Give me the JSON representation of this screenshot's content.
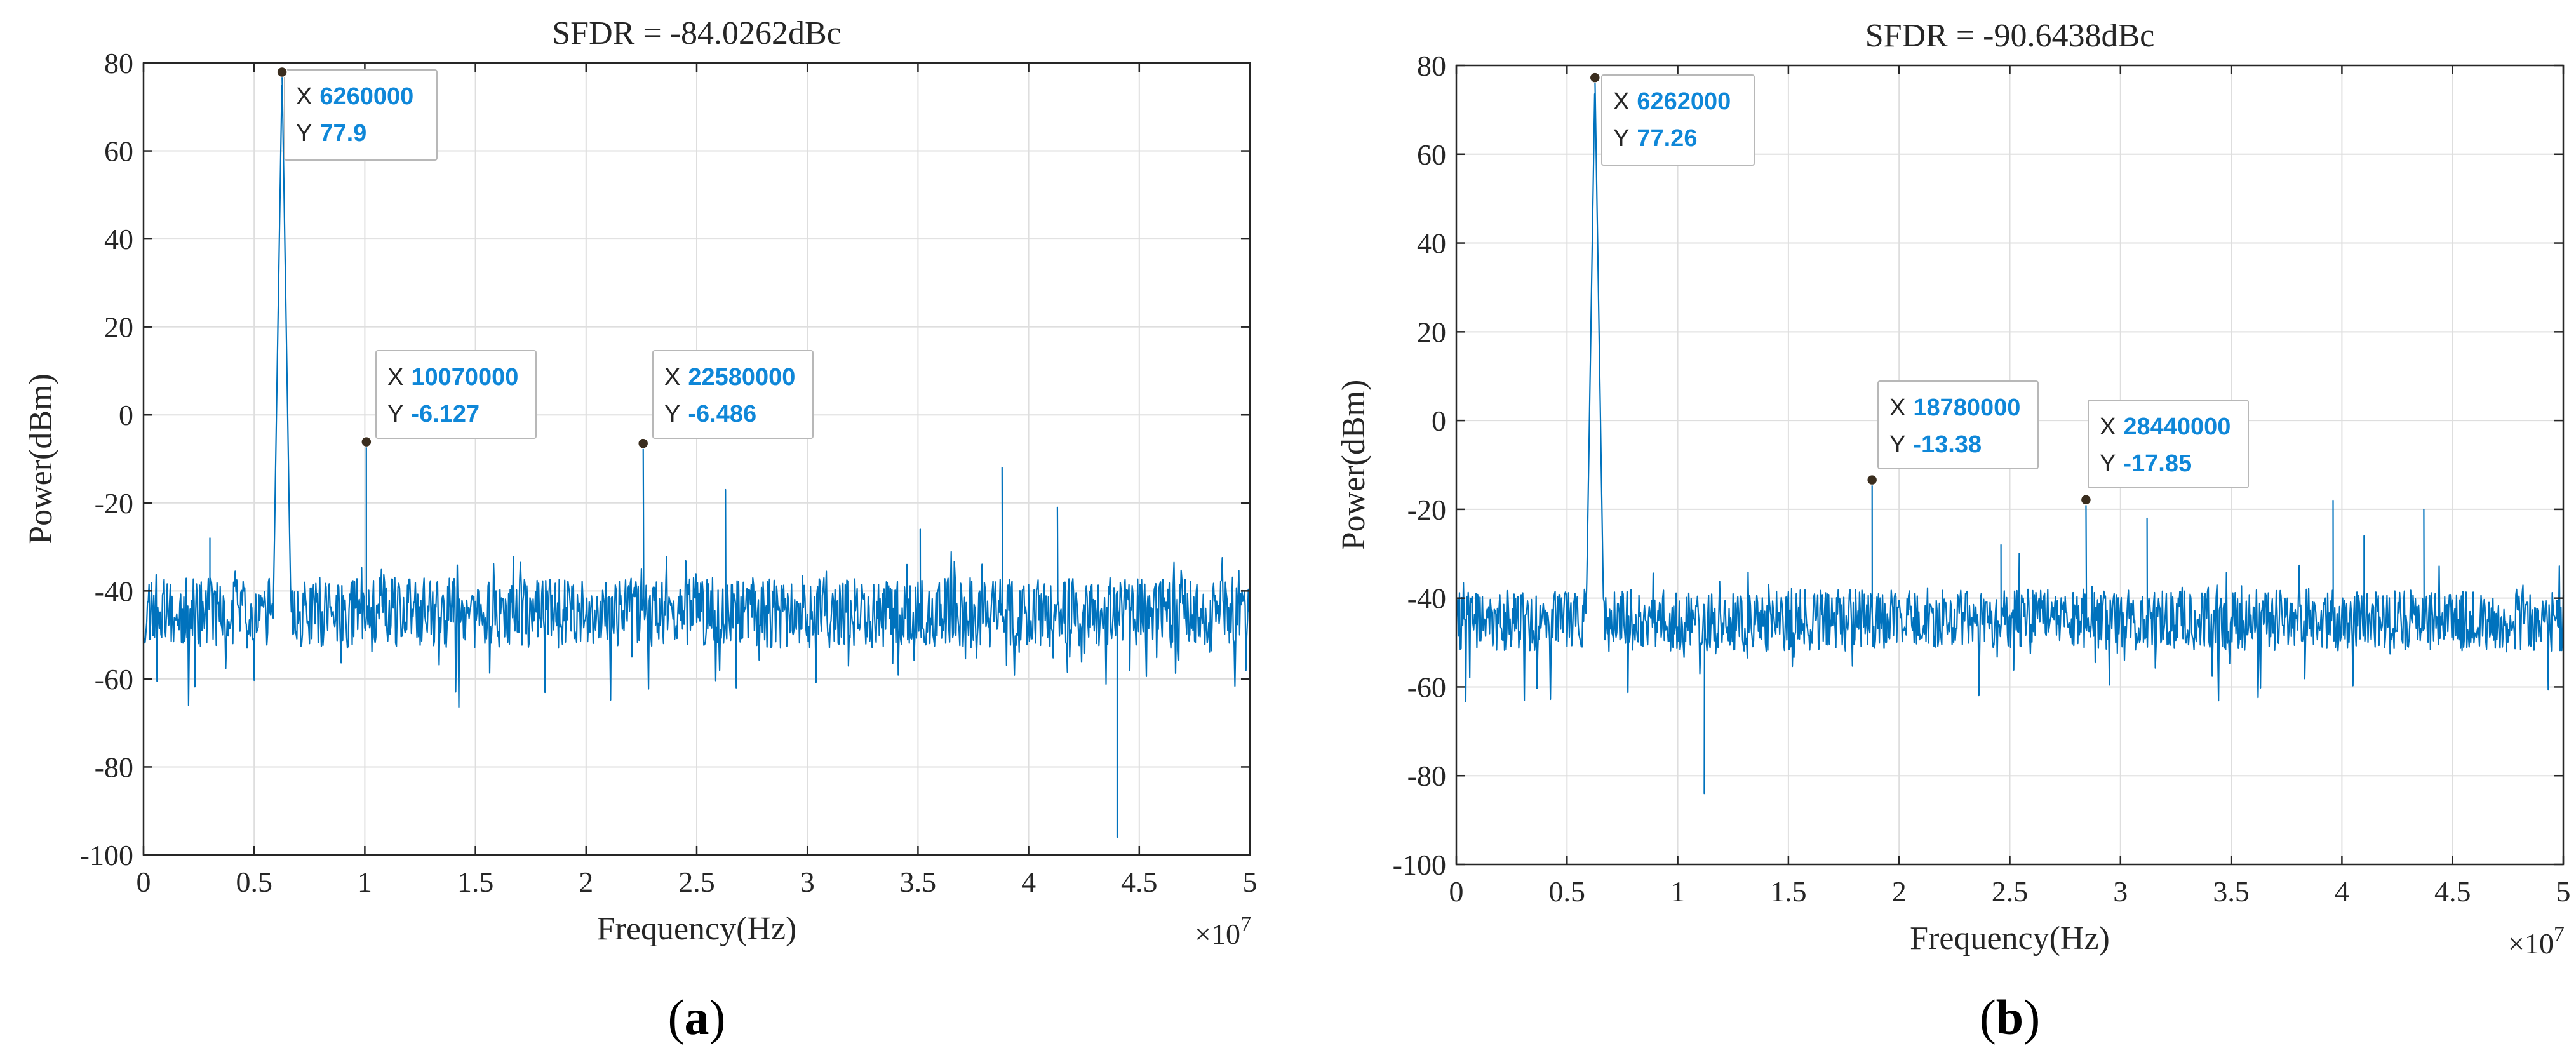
{
  "chart_data": [
    {
      "type": "line",
      "panel_label": "a",
      "title": "SFDR = -84.0262dBc",
      "xlabel": "Frequency(Hz)",
      "ylabel": "Power(dBm)",
      "x_exponent_label": "×10",
      "x_exponent": "7",
      "xlim": [
        0,
        50000000
      ],
      "ylim": [
        -100,
        80
      ],
      "grid": true,
      "x_ticks": [
        0,
        5000000,
        10000000,
        15000000,
        20000000,
        25000000,
        30000000,
        35000000,
        40000000,
        45000000,
        50000000
      ],
      "x_tick_labels": [
        "0",
        "0.5",
        "1",
        "1.5",
        "2",
        "2.5",
        "3",
        "3.5",
        "4",
        "4.5",
        "5"
      ],
      "y_ticks": [
        80,
        60,
        40,
        20,
        0,
        -20,
        -40,
        -60,
        -80,
        -100
      ],
      "y_tick_labels": [
        "80",
        "60",
        "40",
        "20",
        "0",
        "-20",
        "-40",
        "-60",
        "-80",
        "-100"
      ],
      "series": [
        {
          "name": "spectrum",
          "color": "#0072bd",
          "noise_floor": -45,
          "noise_spread": 8,
          "seed": 11,
          "peaks": [
            {
              "x": 6260000,
              "y": 77.9
            },
            {
              "x": 10070000,
              "y": -6.127
            },
            {
              "x": 22580000,
              "y": -6.486
            },
            {
              "x": 26300000,
              "y": -17
            },
            {
              "x": 38800000,
              "y": -12
            },
            {
              "x": 41300000,
              "y": -21
            },
            {
              "x": 3000000,
              "y": -28
            },
            {
              "x": 35100000,
              "y": -26
            },
            {
              "x": 44000000,
              "y": -96
            }
          ]
        }
      ],
      "datatips": [
        {
          "x": 6260000,
          "y": 77.9,
          "x_label": "X",
          "x_value": "6260000",
          "y_label": "Y",
          "y_value": "77.9"
        },
        {
          "x": 10070000,
          "y": -6.127,
          "x_label": "X",
          "x_value": "10070000",
          "y_label": "Y",
          "y_value": "-6.127"
        },
        {
          "x": 22580000,
          "y": -6.486,
          "x_label": "X",
          "x_value": "22580000",
          "y_label": "Y",
          "y_value": "-6.486"
        }
      ]
    },
    {
      "type": "line",
      "panel_label": "b",
      "title": "SFDR = -90.6438dBc",
      "xlabel": "Frequency(Hz)",
      "ylabel": "Power(dBm)",
      "x_exponent_label": "×10",
      "x_exponent": "7",
      "xlim": [
        0,
        50000000
      ],
      "ylim": [
        -100,
        80
      ],
      "grid": true,
      "x_ticks": [
        0,
        5000000,
        10000000,
        15000000,
        20000000,
        25000000,
        30000000,
        35000000,
        40000000,
        45000000,
        50000000
      ],
      "x_tick_labels": [
        "0",
        "0.5",
        "1",
        "1.5",
        "2",
        "2.5",
        "3",
        "3.5",
        "4",
        "4.5",
        "5"
      ],
      "y_ticks": [
        80,
        60,
        40,
        20,
        0,
        -20,
        -40,
        -60,
        -80,
        -100
      ],
      "y_tick_labels": [
        "80",
        "60",
        "40",
        "20",
        "0",
        "-20",
        "-40",
        "-60",
        "-80",
        "-100"
      ],
      "series": [
        {
          "name": "spectrum",
          "color": "#0072bd",
          "noise_floor": -45,
          "noise_spread": 7,
          "seed": 29,
          "peaks": [
            {
              "x": 6262000,
              "y": 77.26
            },
            {
              "x": 18780000,
              "y": -13.38
            },
            {
              "x": 28440000,
              "y": -17.85
            },
            {
              "x": 24600000,
              "y": -28
            },
            {
              "x": 31200000,
              "y": -22
            },
            {
              "x": 39600000,
              "y": -18
            },
            {
              "x": 43700000,
              "y": -20
            },
            {
              "x": 41000000,
              "y": -26
            },
            {
              "x": 11200000,
              "y": -84
            }
          ]
        }
      ],
      "datatips": [
        {
          "x": 6262000,
          "y": 77.26,
          "x_label": "X",
          "x_value": "6262000",
          "y_label": "Y",
          "y_value": "77.26"
        },
        {
          "x": 18780000,
          "y": -13.38,
          "x_label": "X",
          "x_value": "18780000",
          "y_label": "Y",
          "y_value": "-13.38"
        },
        {
          "x": 28440000,
          "y": -17.85,
          "x_label": "X",
          "x_value": "28440000",
          "y_label": "Y",
          "y_value": "-17.85"
        }
      ]
    }
  ]
}
